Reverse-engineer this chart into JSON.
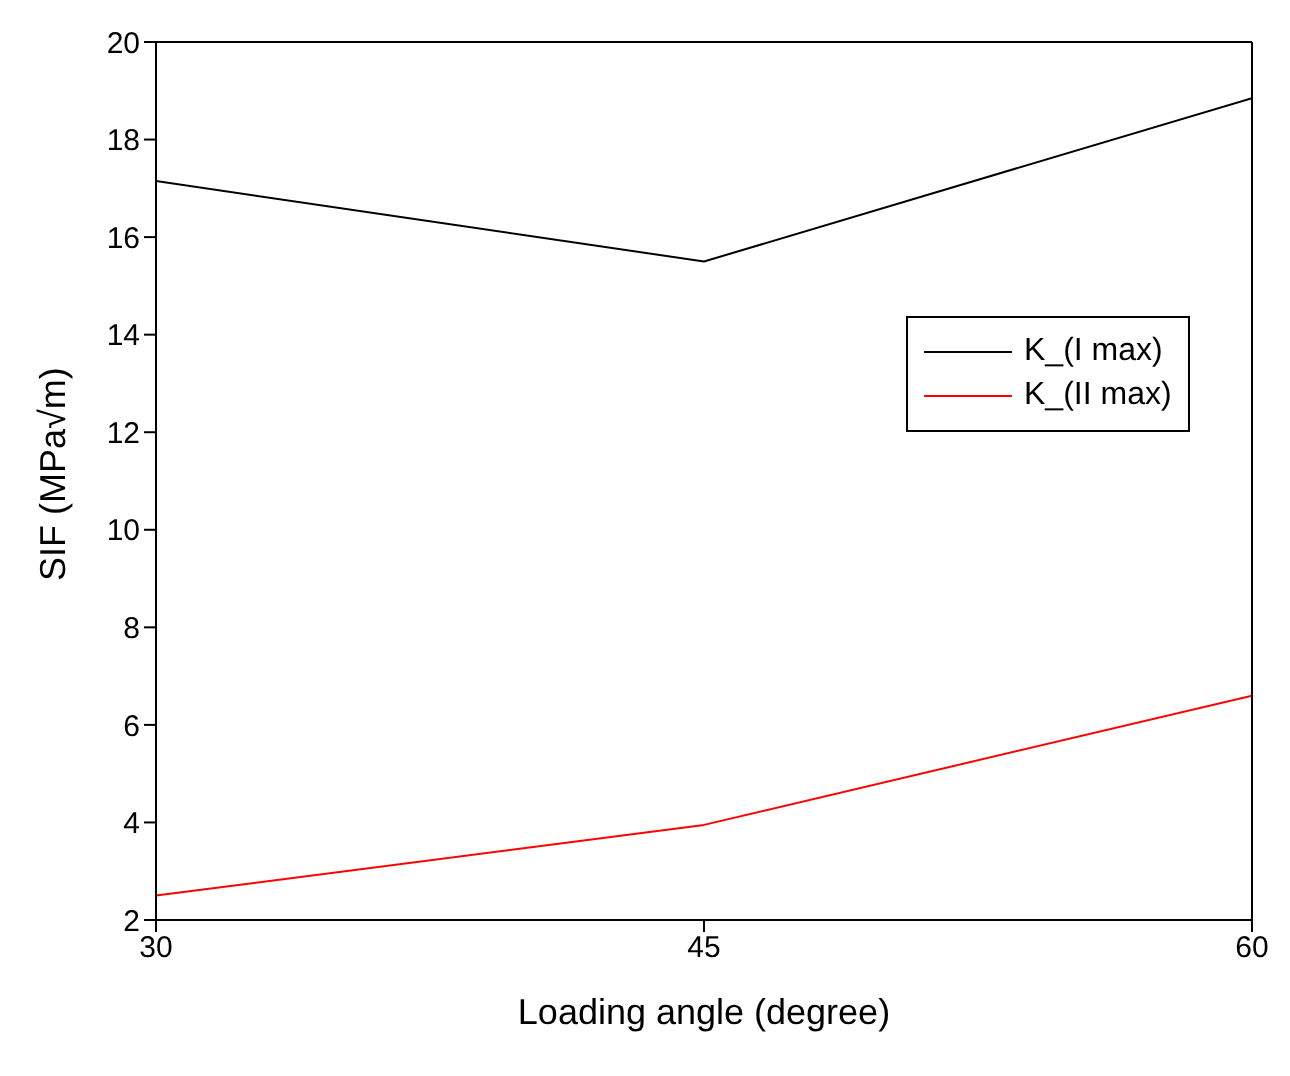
{
  "chart_data": {
    "type": "line",
    "xlabel": "Loading angle (degree)",
    "ylabel": "SIF (MPa√m)",
    "x": [
      30,
      45,
      60
    ],
    "series": [
      {
        "name": "K_(I max)",
        "color": "#000000",
        "values": [
          17.15,
          15.5,
          18.85
        ]
      },
      {
        "name": "K_(II max)",
        "color": "#ff0000",
        "values": [
          2.5,
          3.95,
          6.6
        ]
      }
    ],
    "xlim": [
      30,
      60
    ],
    "xticks": [
      30,
      45,
      60
    ],
    "ylim": [
      2,
      20
    ],
    "yticks": [
      2,
      4,
      6,
      8,
      10,
      12,
      14,
      16,
      18,
      20
    ],
    "legend": "right",
    "marker": "none",
    "line_style": "solid"
  }
}
